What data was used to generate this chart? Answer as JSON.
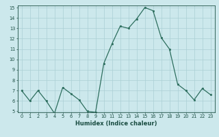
{
  "x": [
    0,
    1,
    2,
    3,
    4,
    5,
    6,
    7,
    8,
    9,
    10,
    11,
    12,
    13,
    14,
    15,
    16,
    17,
    18,
    19,
    20,
    21,
    22,
    23
  ],
  "y": [
    7,
    6,
    7,
    6,
    4.8,
    7.3,
    6.7,
    6.1,
    5,
    4.9,
    9.6,
    11.5,
    13.2,
    13,
    13.9,
    15,
    14.7,
    12.1,
    11,
    7.6,
    7,
    6.1,
    7.2,
    6.6
  ],
  "line_color": "#2d6e5e",
  "marker_color": "#2d6e5e",
  "bg_color": "#cce8ec",
  "grid_color": "#aacfd4",
  "tick_color": "#1a4d42",
  "label_color": "#1a4d42",
  "xlabel": "Humidex (Indice chaleur)",
  "ylim": [
    5,
    15
  ],
  "xlim": [
    -0.5,
    23.5
  ],
  "yticks": [
    5,
    6,
    7,
    8,
    9,
    10,
    11,
    12,
    13,
    14,
    15
  ],
  "xticks": [
    0,
    1,
    2,
    3,
    4,
    5,
    6,
    7,
    8,
    9,
    10,
    11,
    12,
    13,
    14,
    15,
    16,
    17,
    18,
    19,
    20,
    21,
    22,
    23
  ]
}
